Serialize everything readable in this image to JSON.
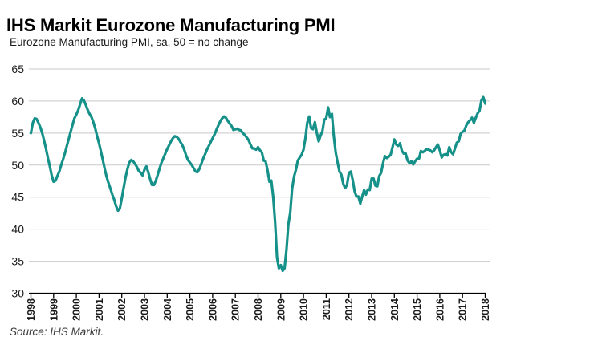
{
  "header": {
    "title": "IHS Markit Eurozone Manufacturing PMI"
  },
  "footer": {
    "source": "Source: IHS Markit."
  },
  "chart_data": {
    "type": "line",
    "title": "Eurozone Manufacturing PMI, sa, 50 = no change",
    "xlabel": "",
    "ylabel": "",
    "ylim": [
      30,
      65
    ],
    "yticks": [
      65,
      60,
      55,
      50,
      45,
      40,
      35,
      30
    ],
    "xticks": [
      1998,
      1999,
      2000,
      2001,
      2002,
      2003,
      2004,
      2005,
      2006,
      2007,
      2008,
      2009,
      2010,
      2011,
      2012,
      2013,
      2014,
      2015,
      2016,
      2017,
      2018
    ],
    "grid": "horizontal",
    "legend": "none",
    "line_color": "#169189",
    "grid_color": "#c9c9c9",
    "axis_color": "#000000",
    "text_color": "#1a1a1a",
    "series": [
      {
        "name": "Eurozone Manufacturing PMI",
        "frequency": "monthly",
        "start_year": 1998,
        "start_month": 1,
        "end_year": 2018,
        "end_month": 1,
        "values": [
          55.0,
          56.6,
          57.3,
          57.2,
          56.6,
          55.9,
          55.0,
          53.8,
          52.5,
          51.1,
          49.8,
          48.4,
          47.4,
          47.6,
          48.3,
          49.0,
          50.0,
          50.9,
          51.9,
          53.0,
          54.1,
          55.2,
          56.3,
          57.3,
          57.9,
          58.6,
          59.5,
          60.4,
          60.1,
          59.4,
          58.6,
          58.0,
          57.5,
          56.7,
          55.7,
          54.5,
          53.4,
          52.1,
          50.8,
          49.4,
          48.2,
          47.2,
          46.3,
          45.4,
          44.6,
          43.6,
          42.9,
          43.2,
          44.8,
          46.5,
          48.1,
          49.4,
          50.4,
          50.8,
          50.6,
          50.2,
          49.7,
          49.1,
          48.8,
          48.4,
          49.3,
          49.8,
          48.9,
          47.8,
          46.9,
          46.9,
          47.6,
          48.5,
          49.5,
          50.4,
          51.1,
          51.8,
          52.5,
          53.1,
          53.7,
          54.2,
          54.5,
          54.4,
          54.1,
          53.6,
          53.1,
          52.4,
          51.5,
          50.8,
          50.4,
          50.0,
          49.5,
          49.0,
          48.9,
          49.4,
          50.2,
          51.0,
          51.7,
          52.4,
          53.0,
          53.6,
          54.2,
          54.8,
          55.5,
          56.2,
          56.8,
          57.3,
          57.6,
          57.4,
          56.9,
          56.5,
          56.1,
          55.5,
          55.6,
          55.7,
          55.5,
          55.4,
          55.0,
          54.7,
          54.3,
          53.9,
          53.2,
          52.6,
          52.6,
          52.4,
          52.8,
          52.3,
          52.0,
          50.7,
          50.6,
          49.2,
          47.4,
          47.6,
          45.0,
          41.1,
          35.6,
          33.9,
          34.4,
          33.5,
          33.9,
          36.8,
          40.7,
          42.6,
          46.3,
          48.2,
          49.3,
          50.7,
          51.2,
          51.6,
          52.4,
          54.2,
          56.6,
          57.6,
          55.8,
          55.6,
          56.7,
          55.1,
          53.7,
          54.6,
          55.3,
          57.1,
          57.3,
          59.0,
          57.5,
          58.0,
          54.6,
          52.0,
          50.4,
          49.0,
          48.5,
          47.1,
          46.4,
          46.9,
          48.8,
          49.0,
          47.7,
          45.9,
          45.1,
          45.1,
          44.0,
          45.1,
          46.1,
          45.4,
          46.2,
          46.1,
          47.9,
          47.9,
          46.8,
          46.7,
          48.3,
          48.8,
          50.3,
          51.4,
          51.1,
          51.3,
          51.6,
          52.7,
          54.0,
          53.2,
          53.0,
          53.4,
          52.2,
          51.8,
          51.8,
          50.7,
          50.3,
          50.6,
          50.1,
          50.6,
          51.0,
          51.0,
          52.2,
          52.0,
          52.2,
          52.5,
          52.4,
          52.3,
          52.0,
          52.3,
          52.8,
          53.2,
          52.3,
          51.2,
          51.6,
          51.7,
          51.5,
          52.8,
          52.0,
          51.7,
          52.6,
          53.5,
          53.7,
          54.9,
          55.2,
          55.4,
          56.2,
          56.7,
          57.0,
          57.4,
          56.6,
          57.4,
          58.1,
          58.5,
          60.1,
          60.6,
          59.6
        ]
      }
    ]
  }
}
